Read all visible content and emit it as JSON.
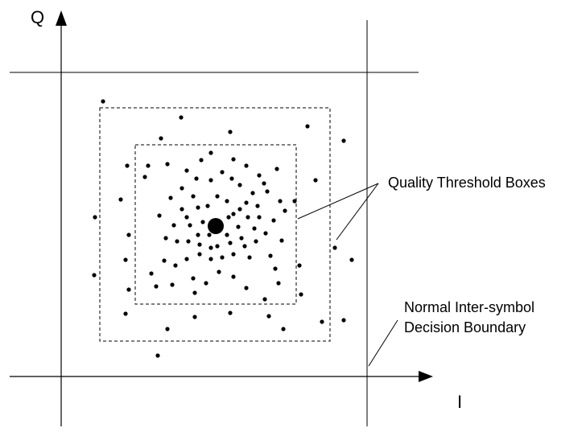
{
  "axes": {
    "x_label": "I",
    "y_label": "Q"
  },
  "labels": {
    "quality_threshold": "Quality Threshold Boxes",
    "decision_boundary_line1": "Normal Inter-symbol",
    "decision_boundary_line2": "Decision Boundary"
  },
  "colors": {
    "ink": "#000000",
    "background": "#ffffff"
  }
}
